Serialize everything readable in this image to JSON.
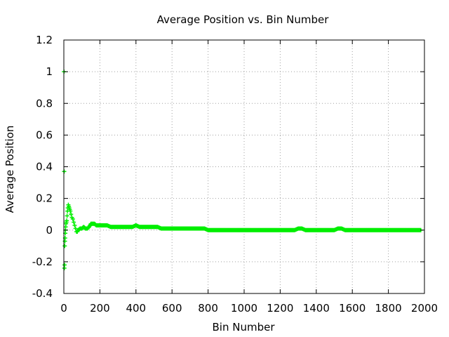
{
  "chart_data": {
    "type": "scatter",
    "title": "Average Position vs. Bin Number",
    "xlabel": "Bin Number",
    "ylabel": "Average Position",
    "xlim": [
      0,
      2000
    ],
    "ylim": [
      -0.4,
      1.2
    ],
    "xticks": [
      0,
      200,
      400,
      600,
      800,
      1000,
      1200,
      1400,
      1600,
      1800,
      2000
    ],
    "yticks": [
      -0.4,
      -0.2,
      0,
      0.2,
      0.4,
      0.6,
      0.8,
      1,
      1.2
    ],
    "xtick_labels": [
      "0",
      "200",
      "400",
      "600",
      "800",
      "1000",
      "1200",
      "1400",
      "1600",
      "1800",
      "2000"
    ],
    "ytick_labels": [
      "-0.4",
      "-0.2",
      "0",
      "0.2",
      "0.4",
      "0.6",
      "0.8",
      "1",
      "1.2"
    ],
    "grid": true,
    "marker": "plus",
    "series_color": "#00ee00",
    "series": [
      {
        "x": [
          1,
          2,
          3,
          4,
          5,
          6,
          7,
          8,
          9,
          10,
          12,
          14,
          16,
          18,
          20,
          22,
          25,
          28,
          30,
          33,
          36,
          40,
          45,
          50,
          55,
          60,
          65,
          70,
          75,
          80,
          90,
          100,
          110,
          120,
          130,
          140,
          150,
          160,
          170,
          180,
          200,
          220,
          240,
          260,
          280,
          300,
          320,
          340,
          360,
          380,
          400,
          420,
          440,
          460,
          480,
          500,
          520,
          540,
          560,
          580,
          600,
          620,
          640,
          660,
          680,
          700,
          720,
          740,
          760,
          780,
          800,
          820,
          840,
          860,
          880,
          900,
          920,
          940,
          960,
          980,
          1000,
          1020,
          1040,
          1060,
          1080,
          1100,
          1120,
          1140,
          1160,
          1180,
          1200,
          1220,
          1240,
          1260,
          1280,
          1300,
          1320,
          1340,
          1360,
          1380,
          1400,
          1420,
          1440,
          1460,
          1480,
          1500,
          1520,
          1540,
          1560,
          1580,
          1600,
          1620,
          1640,
          1660,
          1680,
          1700,
          1720,
          1740,
          1760,
          1780,
          1800,
          1820,
          1840,
          1860,
          1880,
          1900,
          1920,
          1940,
          1960,
          1980
        ],
        "y": [
          1.0,
          0.37,
          -0.24,
          -0.22,
          -0.1,
          -0.07,
          -0.05,
          -0.02,
          0.0,
          0.02,
          0.04,
          0.05,
          0.06,
          0.09,
          0.12,
          0.14,
          0.16,
          0.15,
          0.14,
          0.13,
          0.12,
          0.1,
          0.08,
          0.07,
          0.05,
          0.03,
          0.01,
          -0.01,
          -0.01,
          0.0,
          0.01,
          0.01,
          0.02,
          0.01,
          0.01,
          0.02,
          0.04,
          0.04,
          0.04,
          0.03,
          0.03,
          0.03,
          0.03,
          0.02,
          0.02,
          0.02,
          0.02,
          0.02,
          0.02,
          0.02,
          0.03,
          0.02,
          0.02,
          0.02,
          0.02,
          0.02,
          0.02,
          0.01,
          0.01,
          0.01,
          0.01,
          0.01,
          0.01,
          0.01,
          0.01,
          0.01,
          0.01,
          0.01,
          0.01,
          0.01,
          0.0,
          0.0,
          0.0,
          0.0,
          0.0,
          0.0,
          0.0,
          0.0,
          0.0,
          0.0,
          0.0,
          0.0,
          0.0,
          0.0,
          0.0,
          0.0,
          0.0,
          0.0,
          0.0,
          0.0,
          0.0,
          0.0,
          0.0,
          0.0,
          0.0,
          0.01,
          0.01,
          0.0,
          0.0,
          0.0,
          0.0,
          0.0,
          0.0,
          0.0,
          0.0,
          0.0,
          0.01,
          0.01,
          0.0,
          0.0,
          0.0,
          0.0,
          0.0,
          0.0,
          0.0,
          0.0,
          0.0,
          0.0,
          0.0,
          0.0,
          0.0,
          0.0,
          0.0,
          0.0,
          0.0,
          0.0,
          0.0,
          0.0,
          0.0,
          0.0
        ]
      }
    ]
  }
}
